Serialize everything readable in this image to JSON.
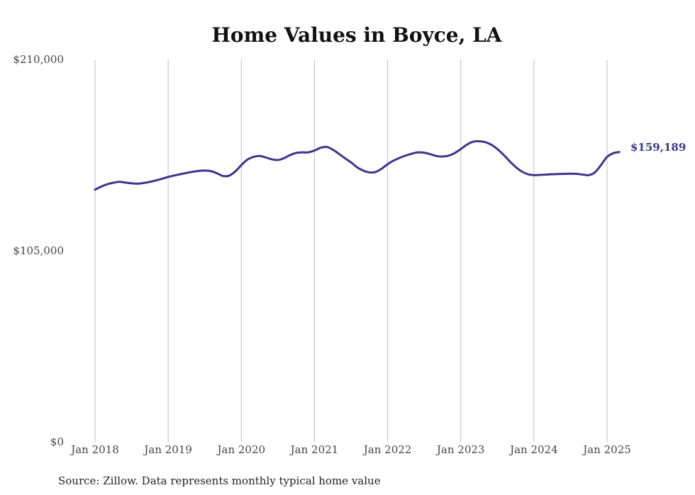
{
  "chart_data": {
    "type": "line",
    "title": "Home Values in Boyce, LA",
    "source": "Source: Zillow. Data represents monthly typical home value",
    "xlabel": "",
    "ylabel": "",
    "ylim": [
      0,
      210000
    ],
    "y_ticks": [
      0,
      105000,
      210000
    ],
    "y_tick_labels": [
      "$0",
      "$105,000",
      "$210,000"
    ],
    "x_ticks": [
      "2018-01",
      "2019-01",
      "2020-01",
      "2021-01",
      "2022-01",
      "2023-01",
      "2024-01",
      "2025-01"
    ],
    "x_tick_labels": [
      "Jan 2018",
      "Jan 2019",
      "Jan 2020",
      "Jan 2021",
      "Jan 2022",
      "Jan 2023",
      "Jan 2024",
      "Jan 2025"
    ],
    "grid": "vertical",
    "line_color": "#3b3590",
    "end_label": "$159,189",
    "series": [
      {
        "x": [
          "2018-01",
          "2018-02",
          "2018-03",
          "2018-04",
          "2018-05",
          "2018-06",
          "2018-07",
          "2018-08",
          "2018-09",
          "2018-10",
          "2018-11",
          "2018-12",
          "2019-01",
          "2019-02",
          "2019-03",
          "2019-04",
          "2019-05",
          "2019-06",
          "2019-07",
          "2019-08",
          "2019-09",
          "2019-10",
          "2019-11",
          "2019-12",
          "2020-01",
          "2020-02",
          "2020-03",
          "2020-04",
          "2020-05",
          "2020-06",
          "2020-07",
          "2020-08",
          "2020-09",
          "2020-10",
          "2020-11",
          "2020-12",
          "2021-01",
          "2021-02",
          "2021-03",
          "2021-04",
          "2021-05",
          "2021-06",
          "2021-07",
          "2021-08",
          "2021-09",
          "2021-10",
          "2021-11",
          "2021-12",
          "2022-01",
          "2022-02",
          "2022-03",
          "2022-04",
          "2022-05",
          "2022-06",
          "2022-07",
          "2022-08",
          "2022-09",
          "2022-10",
          "2022-11",
          "2022-12",
          "2023-01",
          "2023-02",
          "2023-03",
          "2023-04",
          "2023-05",
          "2023-06",
          "2023-07",
          "2023-08",
          "2023-09",
          "2023-10",
          "2023-11",
          "2023-12",
          "2024-01",
          "2024-02",
          "2024-03",
          "2024-04",
          "2024-05",
          "2024-06",
          "2024-07",
          "2024-08",
          "2024-09",
          "2024-10",
          "2024-11",
          "2024-12",
          "2025-01",
          "2025-02",
          "2025-03"
        ],
        "values": [
          138500,
          140200,
          141500,
          142300,
          142800,
          142400,
          142000,
          141800,
          142200,
          142800,
          143600,
          144500,
          145500,
          146300,
          147000,
          147700,
          148300,
          148800,
          149000,
          148700,
          147500,
          146000,
          146200,
          148500,
          152000,
          155000,
          156500,
          157000,
          156200,
          155200,
          154800,
          155800,
          157500,
          158700,
          159000,
          159000,
          160000,
          161500,
          162000,
          160500,
          158200,
          155800,
          153500,
          150800,
          149000,
          148000,
          148200,
          150000,
          152500,
          154500,
          156000,
          157300,
          158300,
          159000,
          158800,
          158000,
          157000,
          156700,
          157200,
          158600,
          160800,
          163200,
          164800,
          165100,
          164600,
          163200,
          160800,
          157700,
          154200,
          151000,
          148500,
          147000,
          146500,
          146600,
          146800,
          147000,
          147100,
          147200,
          147300,
          147200,
          146800,
          146500,
          148000,
          152000,
          156500,
          158500,
          159189
        ]
      }
    ]
  }
}
